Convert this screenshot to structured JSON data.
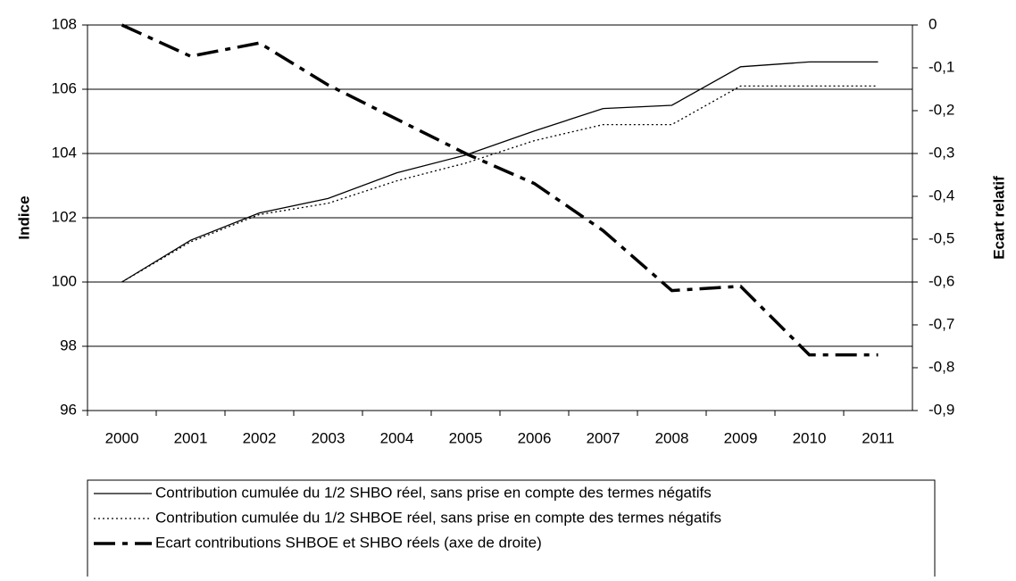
{
  "chart_data": {
    "type": "line",
    "y_label": "Indice",
    "y2_label": "Ecart relatif",
    "categories": [
      "2000",
      "2001",
      "2002",
      "2003",
      "2004",
      "2005",
      "2006",
      "2007",
      "2008",
      "2009",
      "2010",
      "2011"
    ],
    "ylim": [
      96,
      108
    ],
    "yticks": [
      96,
      98,
      100,
      102,
      104,
      106,
      108
    ],
    "y2lim": [
      -0.9,
      0
    ],
    "y2ticks": [
      {
        "value": -0.9,
        "label": "-0,9"
      },
      {
        "value": -0.8,
        "label": "-0,8"
      },
      {
        "value": -0.7,
        "label": "-0,7"
      },
      {
        "value": -0.6,
        "label": "-0,6"
      },
      {
        "value": -0.5,
        "label": "-0,5"
      },
      {
        "value": -0.4,
        "label": "-0,4"
      },
      {
        "value": -0.3,
        "label": "-0,3"
      },
      {
        "value": -0.2,
        "label": "-0,2"
      },
      {
        "value": -0.1,
        "label": "-0,1"
      },
      0
    ],
    "grid": true,
    "series": [
      {
        "name": "Contribution cumulée du 1/2 SHBO réel, sans prise en compte des termes négatifs",
        "color": "#000000",
        "style": "solid",
        "values": [
          100,
          101.3,
          102.15,
          102.6,
          103.4,
          103.95,
          104.7,
          105.4,
          105.5,
          106.7,
          106.85,
          106.85
        ]
      },
      {
        "name": "Contribution  cumulée du 1/2 SHBOE réel, sans prise en compte des termes négatifs",
        "color": "#000000",
        "style": "dotted",
        "values": [
          100,
          101.25,
          102.1,
          102.45,
          103.15,
          103.7,
          104.4,
          104.9,
          104.9,
          106.1,
          106.1,
          106.1
        ]
      },
      {
        "name": "Ecart contributions SHBOE et SHBO réels (axe de droite)",
        "color": "#000000",
        "style": "dashdot",
        "axis": "y2",
        "values": [
          0,
          -0.073,
          -0.042,
          -0.14,
          -0.22,
          -0.3,
          -0.37,
          -0.48,
          -0.62,
          -0.61,
          -0.77,
          -0.77
        ]
      }
    ]
  }
}
